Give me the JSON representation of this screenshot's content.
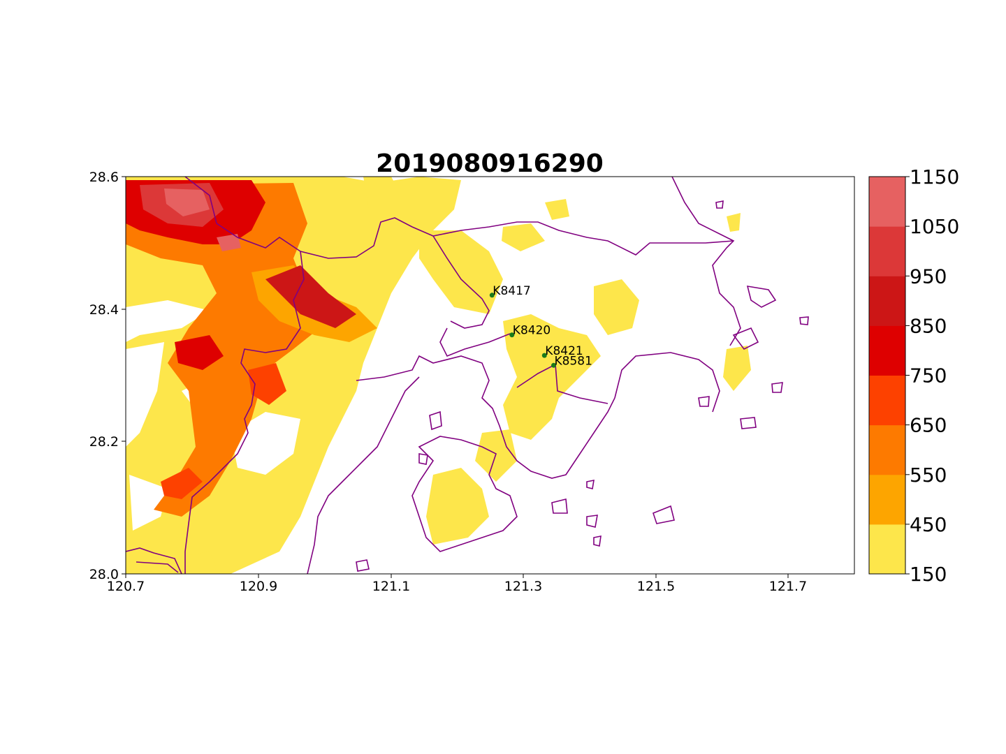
{
  "title": "2019080916290",
  "map": {
    "x_ticks": [
      "120.7",
      "120.9",
      "121.1",
      "121.3",
      "121.5",
      "121.7"
    ],
    "y_ticks": [
      "28.0",
      "28.2",
      "28.4",
      "28.6"
    ],
    "lon_range": [
      120.7,
      121.8
    ],
    "lat_range": [
      28.0,
      28.6
    ],
    "boundary_color": "#800080",
    "station_color": "#1a7a1a"
  },
  "stations": [
    {
      "id": "K8417",
      "lon": 121.253,
      "lat": 28.421
    },
    {
      "id": "K8420",
      "lon": 121.283,
      "lat": 28.361
    },
    {
      "id": "K8421",
      "lon": 121.332,
      "lat": 28.33
    },
    {
      "id": "K8581",
      "lon": 121.346,
      "lat": 28.315
    }
  ],
  "colorbar": {
    "ticks": [
      "150",
      "450",
      "550",
      "650",
      "750",
      "850",
      "950",
      "1050",
      "1150"
    ],
    "colors": [
      "#fde64b",
      "#fda500",
      "#fd7a00",
      "#fd4100",
      "#de0000",
      "#cc1616",
      "#dc3838",
      "#e66161"
    ]
  }
}
